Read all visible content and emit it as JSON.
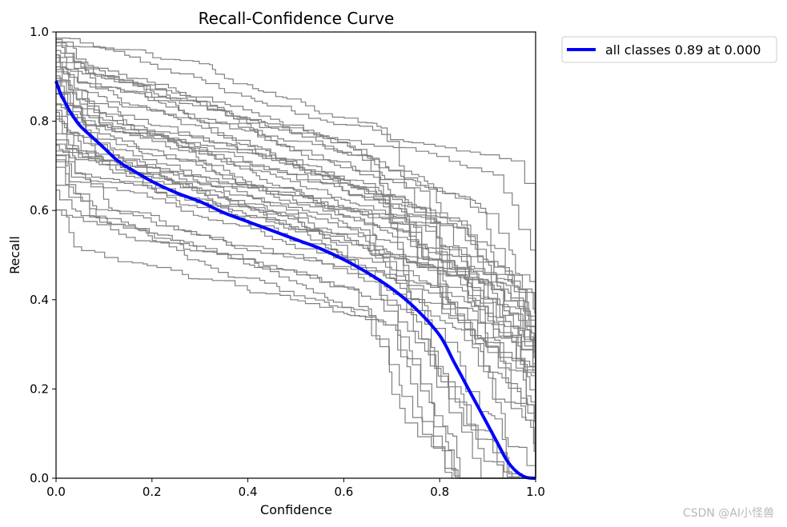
{
  "chart_data": {
    "type": "line",
    "title": "Recall-Confidence Curve",
    "xlabel": "Confidence",
    "ylabel": "Recall",
    "xlim": [
      0.0,
      1.0
    ],
    "ylim": [
      0.0,
      1.0
    ],
    "xticks": [
      "0.0",
      "0.2",
      "0.4",
      "0.6",
      "0.8",
      "1.0"
    ],
    "yticks": [
      "0.0",
      "0.2",
      "0.4",
      "0.6",
      "0.8",
      "1.0"
    ],
    "grid": false,
    "legend_position": "outside-top-right",
    "series": [
      {
        "name": "all classes 0.89 at 0.000",
        "color": "#0000ff",
        "x": [
          0.0,
          0.01,
          0.02,
          0.03,
          0.05,
          0.08,
          0.1,
          0.13,
          0.16,
          0.2,
          0.25,
          0.3,
          0.35,
          0.4,
          0.45,
          0.5,
          0.55,
          0.6,
          0.65,
          0.7,
          0.75,
          0.8,
          0.83,
          0.86,
          0.88,
          0.9,
          0.92,
          0.94,
          0.96,
          0.98,
          1.0
        ],
        "y": [
          0.89,
          0.86,
          0.84,
          0.82,
          0.79,
          0.76,
          0.74,
          0.71,
          0.69,
          0.665,
          0.64,
          0.62,
          0.595,
          0.575,
          0.555,
          0.535,
          0.515,
          0.49,
          0.46,
          0.425,
          0.38,
          0.32,
          0.26,
          0.2,
          0.16,
          0.12,
          0.08,
          0.04,
          0.015,
          0.002,
          0.0
        ]
      }
    ],
    "per_class_curve_count": 40,
    "per_class_color": "#808080"
  },
  "watermark": "CSDN @AI小怪兽"
}
